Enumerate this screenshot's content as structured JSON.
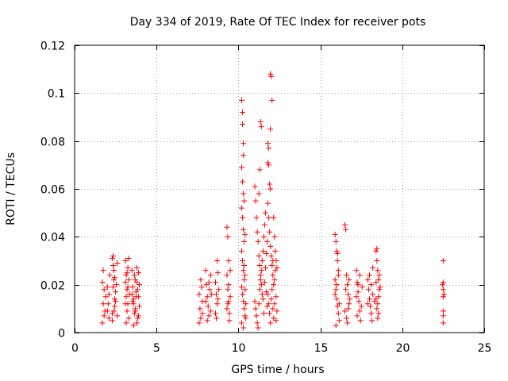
{
  "chart_data": {
    "type": "scatter",
    "title": "Day 334 of 2019, Rate Of TEC Index for receiver pots",
    "xlabel": "GPS time / hours",
    "ylabel": "ROTI / TECUs",
    "xlim": [
      0,
      25
    ],
    "ylim": [
      0,
      0.12
    ],
    "xticks": [
      0,
      5,
      10,
      15,
      20,
      25
    ],
    "xtick_labels": [
      "0",
      "5",
      "10",
      "15",
      "20",
      "25"
    ],
    "yticks": [
      0,
      0.02,
      0.04,
      0.06,
      0.08,
      0.1,
      0.12
    ],
    "ytick_labels": [
      "0",
      "0.02",
      "0.04",
      "0.06",
      "0.08",
      "0.1",
      "0.12"
    ],
    "grid": true,
    "marker": "+",
    "marker_color": "#ff0000",
    "series": [
      {
        "name": "ROTI",
        "points": [
          [
            1.7,
            0.004
          ],
          [
            1.75,
            0.012
          ],
          [
            1.8,
            0.018
          ],
          [
            1.85,
            0.009
          ],
          [
            1.75,
            0.026
          ],
          [
            1.8,
            0.007
          ],
          [
            1.9,
            0.015
          ],
          [
            1.7,
            0.021
          ],
          [
            2.0,
            0.019
          ],
          [
            2.05,
            0.012
          ],
          [
            2.1,
            0.006
          ],
          [
            2.15,
            0.024
          ],
          [
            2.0,
            0.009
          ],
          [
            2.1,
            0.016
          ],
          [
            2.3,
            0.031
          ],
          [
            2.35,
            0.028
          ],
          [
            2.4,
            0.022
          ],
          [
            2.45,
            0.014
          ],
          [
            2.3,
            0.008
          ],
          [
            2.35,
            0.019
          ],
          [
            2.4,
            0.026
          ],
          [
            2.45,
            0.011
          ],
          [
            2.5,
            0.017
          ],
          [
            2.3,
            0.005
          ],
          [
            2.35,
            0.032
          ],
          [
            2.4,
            0.009
          ],
          [
            2.45,
            0.023
          ],
          [
            2.5,
            0.013
          ],
          [
            2.55,
            0.02
          ],
          [
            2.6,
            0.007
          ],
          [
            2.6,
            0.029
          ],
          [
            3.1,
            0.03
          ],
          [
            3.15,
            0.024
          ],
          [
            3.2,
            0.018
          ],
          [
            3.25,
            0.012
          ],
          [
            3.3,
            0.006
          ],
          [
            3.1,
            0.021
          ],
          [
            3.15,
            0.015
          ],
          [
            3.2,
            0.009
          ],
          [
            3.25,
            0.027
          ],
          [
            3.3,
            0.031
          ],
          [
            3.35,
            0.016
          ],
          [
            3.1,
            0.012
          ],
          [
            3.2,
            0.025
          ],
          [
            3.3,
            0.022
          ],
          [
            3.15,
            0.004
          ],
          [
            3.25,
            0.019
          ],
          [
            3.5,
            0.026
          ],
          [
            3.55,
            0.019
          ],
          [
            3.6,
            0.012
          ],
          [
            3.65,
            0.008
          ],
          [
            3.7,
            0.022
          ],
          [
            3.75,
            0.015
          ],
          [
            3.8,
            0.004
          ],
          [
            3.85,
            0.018
          ],
          [
            3.9,
            0.025
          ],
          [
            3.95,
            0.011
          ],
          [
            3.5,
            0.016
          ],
          [
            3.6,
            0.003
          ],
          [
            3.7,
            0.009
          ],
          [
            3.8,
            0.021
          ],
          [
            3.9,
            0.007
          ],
          [
            3.55,
            0.013
          ],
          [
            3.65,
            0.024
          ],
          [
            3.75,
            0.017
          ],
          [
            3.85,
            0.006
          ],
          [
            3.95,
            0.02
          ],
          [
            3.6,
            0.014
          ],
          [
            3.7,
            0.01
          ],
          [
            3.8,
            0.027
          ],
          [
            3.9,
            0.015
          ],
          [
            7.6,
            0.016
          ],
          [
            7.65,
            0.01
          ],
          [
            7.7,
            0.006
          ],
          [
            7.75,
            0.019
          ],
          [
            7.8,
            0.013
          ],
          [
            7.6,
            0.004
          ],
          [
            7.7,
            0.022
          ],
          [
            7.8,
            0.008
          ],
          [
            8.0,
            0.026
          ],
          [
            8.05,
            0.02
          ],
          [
            8.1,
            0.015
          ],
          [
            8.15,
            0.011
          ],
          [
            8.2,
            0.007
          ],
          [
            8.25,
            0.018
          ],
          [
            8.3,
            0.024
          ],
          [
            8.0,
            0.013
          ],
          [
            8.1,
            0.005
          ],
          [
            8.2,
            0.021
          ],
          [
            8.3,
            0.009
          ],
          [
            8.35,
            0.016
          ],
          [
            8.6,
            0.021
          ],
          [
            8.65,
            0.016
          ],
          [
            8.7,
            0.012
          ],
          [
            8.75,
            0.025
          ],
          [
            8.6,
            0.008
          ],
          [
            8.7,
            0.03
          ],
          [
            8.8,
            0.018
          ],
          [
            8.65,
            0.006
          ],
          [
            8.75,
            0.014
          ],
          [
            9.3,
            0.044
          ],
          [
            9.35,
            0.04
          ],
          [
            9.4,
            0.03
          ],
          [
            9.3,
            0.024
          ],
          [
            9.35,
            0.018
          ],
          [
            9.4,
            0.013
          ],
          [
            9.45,
            0.008
          ],
          [
            9.5,
            0.015
          ],
          [
            9.3,
            0.01
          ],
          [
            9.4,
            0.02
          ],
          [
            9.5,
            0.026
          ],
          [
            9.45,
            0.005
          ],
          [
            9.35,
            0.012
          ],
          [
            10.2,
            0.097
          ],
          [
            10.25,
            0.087
          ],
          [
            10.3,
            0.079
          ],
          [
            10.2,
            0.069
          ],
          [
            10.25,
            0.063
          ],
          [
            10.3,
            0.058
          ],
          [
            10.2,
            0.052
          ],
          [
            10.25,
            0.048
          ],
          [
            10.3,
            0.043
          ],
          [
            10.35,
            0.038
          ],
          [
            10.2,
            0.034
          ],
          [
            10.25,
            0.03
          ],
          [
            10.3,
            0.026
          ],
          [
            10.35,
            0.022
          ],
          [
            10.2,
            0.019
          ],
          [
            10.25,
            0.016
          ],
          [
            10.3,
            0.013
          ],
          [
            10.35,
            0.01
          ],
          [
            10.4,
            0.007
          ],
          [
            10.2,
            0.004
          ],
          [
            10.3,
            0.002
          ],
          [
            10.4,
            0.018
          ],
          [
            10.45,
            0.012
          ],
          [
            10.35,
            0.028
          ],
          [
            10.4,
            0.024
          ],
          [
            10.45,
            0.006
          ],
          [
            10.25,
            0.092
          ],
          [
            10.3,
            0.074
          ],
          [
            10.35,
            0.055
          ],
          [
            10.4,
            0.041
          ],
          [
            11.0,
            0.061
          ],
          [
            11.05,
            0.055
          ],
          [
            11.1,
            0.048
          ],
          [
            11.15,
            0.042
          ],
          [
            11.2,
            0.038
          ],
          [
            11.25,
            0.032
          ],
          [
            11.3,
            0.028
          ],
          [
            11.35,
            0.024
          ],
          [
            11.4,
            0.02
          ],
          [
            11.45,
            0.016
          ],
          [
            11.0,
            0.013
          ],
          [
            11.05,
            0.01
          ],
          [
            11.1,
            0.007
          ],
          [
            11.15,
            0.004
          ],
          [
            11.2,
            0.002
          ],
          [
            11.25,
            0.012
          ],
          [
            11.3,
            0.018
          ],
          [
            11.35,
            0.022
          ],
          [
            11.4,
            0.026
          ],
          [
            11.45,
            0.03
          ],
          [
            11.5,
            0.034
          ],
          [
            11.55,
            0.04
          ],
          [
            11.6,
            0.045
          ],
          [
            11.65,
            0.05
          ],
          [
            11.35,
            0.088
          ],
          [
            11.4,
            0.086
          ],
          [
            11.3,
            0.068
          ],
          [
            11.25,
            0.058
          ],
          [
            11.5,
            0.014
          ],
          [
            11.55,
            0.008
          ],
          [
            11.6,
            0.021
          ],
          [
            11.65,
            0.027
          ],
          [
            11.7,
            0.017
          ],
          [
            11.75,
            0.011
          ],
          [
            11.7,
            0.033
          ],
          [
            11.75,
            0.038
          ],
          [
            11.8,
            0.071
          ],
          [
            11.85,
            0.07
          ],
          [
            11.9,
            0.062
          ],
          [
            11.95,
            0.06
          ],
          [
            11.8,
            0.054
          ],
          [
            11.85,
            0.048
          ],
          [
            11.9,
            0.042
          ],
          [
            11.95,
            0.036
          ],
          [
            12.0,
            0.032
          ],
          [
            12.05,
            0.028
          ],
          [
            12.1,
            0.024
          ],
          [
            12.15,
            0.02
          ],
          [
            11.8,
            0.016
          ],
          [
            11.85,
            0.012
          ],
          [
            11.9,
            0.008
          ],
          [
            11.95,
            0.004
          ],
          [
            12.0,
            0.014
          ],
          [
            12.05,
            0.018
          ],
          [
            12.1,
            0.01
          ],
          [
            12.15,
            0.006
          ],
          [
            12.2,
            0.022
          ],
          [
            12.25,
            0.026
          ],
          [
            12.3,
            0.015
          ],
          [
            12.35,
            0.009
          ],
          [
            11.95,
            0.108
          ],
          [
            12.0,
            0.107
          ],
          [
            12.05,
            0.097
          ],
          [
            11.95,
            0.085
          ],
          [
            11.8,
            0.079
          ],
          [
            11.85,
            0.077
          ],
          [
            12.15,
            0.048
          ],
          [
            12.2,
            0.04
          ],
          [
            12.25,
            0.034
          ],
          [
            12.3,
            0.03
          ],
          [
            12.35,
            0.027
          ],
          [
            12.1,
            0.03
          ],
          [
            12.2,
            0.012
          ],
          [
            12.3,
            0.005
          ],
          [
            15.9,
            0.041
          ],
          [
            15.95,
            0.038
          ],
          [
            16.0,
            0.034
          ],
          [
            16.05,
            0.03
          ],
          [
            16.1,
            0.026
          ],
          [
            15.9,
            0.022
          ],
          [
            15.95,
            0.018
          ],
          [
            16.0,
            0.014
          ],
          [
            16.05,
            0.011
          ],
          [
            16.1,
            0.008
          ],
          [
            16.15,
            0.005
          ],
          [
            15.9,
            0.016
          ],
          [
            16.0,
            0.02
          ],
          [
            16.1,
            0.024
          ],
          [
            16.15,
            0.012
          ],
          [
            16.05,
            0.033
          ],
          [
            15.95,
            0.003
          ],
          [
            16.5,
            0.045
          ],
          [
            16.55,
            0.043
          ],
          [
            16.6,
            0.024
          ],
          [
            16.65,
            0.02
          ],
          [
            16.7,
            0.016
          ],
          [
            16.75,
            0.012
          ],
          [
            16.5,
            0.009
          ],
          [
            16.6,
            0.006
          ],
          [
            16.7,
            0.01
          ],
          [
            16.8,
            0.014
          ],
          [
            16.55,
            0.018
          ],
          [
            16.65,
            0.004
          ],
          [
            16.75,
            0.022
          ],
          [
            17.2,
            0.026
          ],
          [
            17.25,
            0.021
          ],
          [
            17.3,
            0.017
          ],
          [
            17.35,
            0.013
          ],
          [
            17.4,
            0.009
          ],
          [
            17.45,
            0.005
          ],
          [
            17.2,
            0.015
          ],
          [
            17.3,
            0.02
          ],
          [
            17.4,
            0.024
          ],
          [
            17.5,
            0.011
          ],
          [
            17.55,
            0.019
          ],
          [
            17.25,
            0.007
          ],
          [
            17.9,
            0.022
          ],
          [
            17.95,
            0.018
          ],
          [
            18.0,
            0.014
          ],
          [
            18.05,
            0.011
          ],
          [
            18.1,
            0.008
          ],
          [
            18.15,
            0.005
          ],
          [
            18.2,
            0.016
          ],
          [
            17.9,
            0.012
          ],
          [
            18.0,
            0.024
          ],
          [
            18.1,
            0.02
          ],
          [
            18.2,
            0.027
          ],
          [
            18.3,
            0.013
          ],
          [
            18.4,
            0.034
          ],
          [
            18.45,
            0.03
          ],
          [
            18.5,
            0.026
          ],
          [
            18.55,
            0.022
          ],
          [
            18.6,
            0.018
          ],
          [
            18.4,
            0.014
          ],
          [
            18.45,
            0.01
          ],
          [
            18.5,
            0.006
          ],
          [
            18.55,
            0.015
          ],
          [
            18.6,
            0.024
          ],
          [
            18.65,
            0.019
          ],
          [
            18.5,
            0.012
          ],
          [
            18.55,
            0.008
          ],
          [
            18.4,
            0.021
          ],
          [
            18.45,
            0.035
          ],
          [
            22.5,
            0.03
          ],
          [
            22.5,
            0.021
          ],
          [
            22.5,
            0.018
          ],
          [
            22.5,
            0.015
          ],
          [
            22.5,
            0.009
          ],
          [
            22.5,
            0.007
          ],
          [
            22.5,
            0.004
          ],
          [
            22.45,
            0.02
          ],
          [
            22.55,
            0.016
          ]
        ]
      }
    ]
  }
}
